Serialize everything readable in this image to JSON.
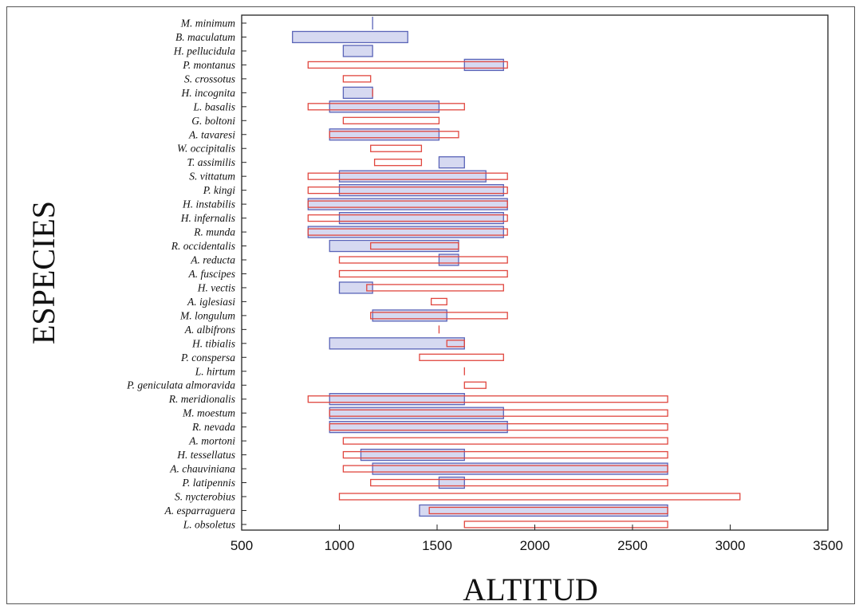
{
  "chart_data": {
    "type": "range-bar",
    "xlabel": "ALTITUD",
    "ylabel": "ESPECIES",
    "xlim": [
      500,
      3500
    ],
    "xticks": [
      500,
      1000,
      1500,
      2000,
      2500,
      3000,
      3500
    ],
    "grid": false,
    "colors": {
      "blue_stroke": "#5a64b8",
      "blue_fill": "#d6d9f1",
      "red_stroke": "#e0473f",
      "red_fill": "#ffffff"
    },
    "species": [
      {
        "name": "M. minimum",
        "blue": [
          1170,
          1170
        ],
        "red": null
      },
      {
        "name": "B. maculatum",
        "blue": [
          760,
          1350
        ],
        "red": null
      },
      {
        "name": "H. pellucidula",
        "blue": [
          1020,
          1170
        ],
        "red": null
      },
      {
        "name": "P. montanus",
        "blue": [
          1640,
          1840
        ],
        "red": [
          840,
          1860
        ]
      },
      {
        "name": "S. crossotus",
        "blue": null,
        "red": [
          1020,
          1160
        ]
      },
      {
        "name": "H. incognita",
        "blue": [
          1020,
          1170
        ],
        "red": [
          1170,
          1170
        ]
      },
      {
        "name": "L. basalis",
        "blue": [
          950,
          1510
        ],
        "red": [
          840,
          1640
        ]
      },
      {
        "name": "G. boltoni",
        "blue": null,
        "red": [
          1020,
          1510
        ]
      },
      {
        "name": "A. tavaresi",
        "blue": [
          950,
          1510
        ],
        "red": [
          950,
          1610
        ]
      },
      {
        "name": "W. occipitalis",
        "blue": null,
        "red": [
          1160,
          1420
        ]
      },
      {
        "name": "T. assimilis",
        "blue": [
          1510,
          1640
        ],
        "red": [
          1180,
          1420
        ]
      },
      {
        "name": "S. vittatum",
        "blue": [
          1000,
          1750
        ],
        "red": [
          840,
          1860
        ]
      },
      {
        "name": "P. kingi",
        "blue": [
          1000,
          1840
        ],
        "red": [
          840,
          1860
        ]
      },
      {
        "name": "H. instabilis",
        "blue": [
          840,
          1860
        ],
        "red": [
          840,
          1860
        ]
      },
      {
        "name": "H. infernalis",
        "blue": [
          1000,
          1840
        ],
        "red": [
          840,
          1860
        ]
      },
      {
        "name": "R. munda",
        "blue": [
          840,
          1840
        ],
        "red": [
          840,
          1860
        ]
      },
      {
        "name": "R. occidentalis",
        "blue": [
          950,
          1610
        ],
        "red": [
          1160,
          1610
        ]
      },
      {
        "name": "A. reducta",
        "blue": [
          1510,
          1610
        ],
        "red": [
          1000,
          1860
        ]
      },
      {
        "name": "A. fuscipes",
        "blue": null,
        "red": [
          1000,
          1860
        ]
      },
      {
        "name": "H. vectis",
        "blue": [
          1000,
          1170
        ],
        "red": [
          1140,
          1840
        ]
      },
      {
        "name": "A. iglesiasi",
        "blue": null,
        "red": [
          1470,
          1550
        ]
      },
      {
        "name": "M. longulum",
        "blue": [
          1170,
          1550
        ],
        "red": [
          1160,
          1860
        ]
      },
      {
        "name": "A. albifrons",
        "blue": null,
        "red": [
          1510,
          1510
        ]
      },
      {
        "name": "H. tibialis",
        "blue": [
          950,
          1640
        ],
        "red": [
          1550,
          1640
        ]
      },
      {
        "name": "P. conspersa",
        "blue": null,
        "red": [
          1410,
          1840
        ]
      },
      {
        "name": "L. hirtum",
        "blue": null,
        "red": [
          1640,
          1640
        ]
      },
      {
        "name": "P. geniculata almoravida",
        "blue": null,
        "red": [
          1640,
          1750
        ]
      },
      {
        "name": "R. meridionalis",
        "blue": [
          950,
          1640
        ],
        "red": [
          840,
          2680
        ]
      },
      {
        "name": "M. moestum",
        "blue": [
          950,
          1840
        ],
        "red": [
          950,
          2680
        ]
      },
      {
        "name": "R. nevada",
        "blue": [
          950,
          1860
        ],
        "red": [
          950,
          2680
        ]
      },
      {
        "name": "A. mortoni",
        "blue": null,
        "red": [
          1020,
          2680
        ]
      },
      {
        "name": "H. tessellatus",
        "blue": [
          1110,
          1640
        ],
        "red": [
          1020,
          2680
        ]
      },
      {
        "name": "A. chauviniana",
        "blue": [
          1170,
          2680
        ],
        "red": [
          1020,
          2680
        ]
      },
      {
        "name": "P. latipennis",
        "blue": [
          1510,
          1640
        ],
        "red": [
          1160,
          2680
        ]
      },
      {
        "name": "S. nycterobius",
        "blue": null,
        "red": [
          1000,
          3050
        ]
      },
      {
        "name": "A. esparraguera",
        "blue": [
          1410,
          2680
        ],
        "red": [
          1460,
          2680
        ]
      },
      {
        "name": "L. obsoletus",
        "blue": null,
        "red": [
          1640,
          2680
        ]
      }
    ]
  }
}
